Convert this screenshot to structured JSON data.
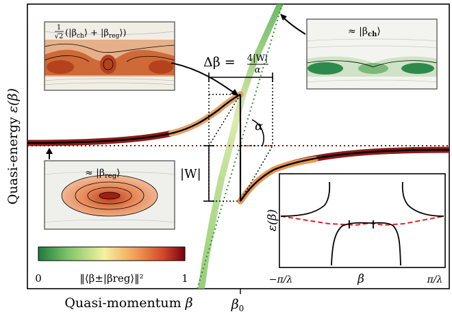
{
  "chart_data": {
    "type": "line",
    "axes": {
      "ylabel_prefix": "Quasi-energy ",
      "ylabel_symbol": "ε(β)",
      "xlabel_prefix": "Quasi-momentum ",
      "xlabel_symbol": "β",
      "x_center_tick": "β",
      "x_center_tick_sub": "0"
    },
    "annotations": {
      "delta_beta_lhs": "Δβ = ",
      "delta_beta_num": "4|W|",
      "delta_beta_den": "α",
      "alpha": "α",
      "coupling": "|W|"
    },
    "insets": {
      "superposition": {
        "frac_num": "1",
        "frac_den": "√2",
        "rest": "(|β",
        "sub1": "ch",
        "mid": "⟩ + |β",
        "sub2": "reg",
        "end": "⟩)"
      },
      "chaotic": {
        "prefix": "≈ |β",
        "sub": "ch",
        "suffix": "⟩"
      },
      "regular": {
        "prefix": "≈ |β",
        "sub": "reg",
        "suffix": "⟩"
      }
    },
    "colorbar": {
      "min_label": "0",
      "max_label": "1",
      "label": "‖⟨β±|βreg⟩‖²",
      "colors": [
        "#1e7a3e",
        "#7cc46a",
        "#f4f1a0",
        "#f2a45c",
        "#d24a2a",
        "#7a0010"
      ]
    },
    "dispersion_inset": {
      "ylabel": "ε(β)",
      "xlabel": "β",
      "xmin_label": "−π/λ",
      "xmax_label": "π/λ",
      "series": [
        {
          "style": "solid",
          "color": "#000000"
        },
        {
          "style": "dashed",
          "color": "#e02020"
        }
      ]
    },
    "series_colors": {
      "regular_level": "#7a1010",
      "chaotic_level": "#2e8b2e",
      "avoided_crossing": "#000000"
    }
  }
}
